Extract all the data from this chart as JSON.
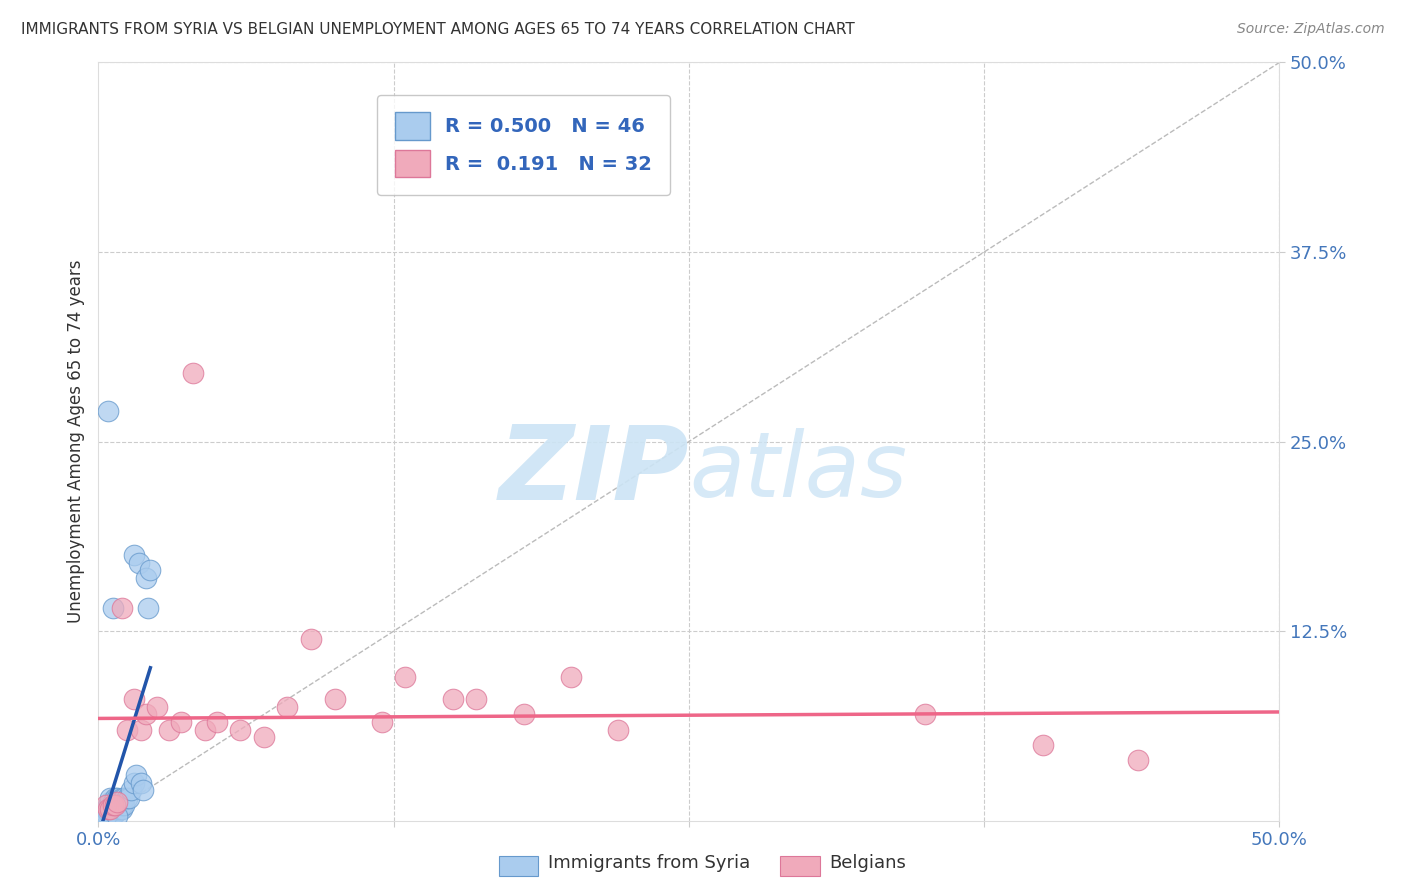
{
  "title": "IMMIGRANTS FROM SYRIA VS BELGIAN UNEMPLOYMENT AMONG AGES 65 TO 74 YEARS CORRELATION CHART",
  "source": "Source: ZipAtlas.com",
  "ylabel": "Unemployment Among Ages 65 to 74 years",
  "legend_label1": "Immigrants from Syria",
  "legend_label2": "Belgians",
  "R1": 0.5,
  "N1": 46,
  "R2": 0.191,
  "N2": 32,
  "xlim": [
    0.0,
    0.5
  ],
  "ylim": [
    0.0,
    0.5
  ],
  "xticks": [
    0.0,
    0.125,
    0.25,
    0.375,
    0.5
  ],
  "yticks": [
    0.125,
    0.25,
    0.375,
    0.5
  ],
  "color_blue": "#aaccee",
  "color_pink": "#f0aabb",
  "color_blue_edge": "#6699cc",
  "color_pink_edge": "#dd7799",
  "color_blue_line": "#2255aa",
  "color_pink_line": "#ee6688",
  "watermark_color": "#cce4f5",
  "blue_dots_x": [
    0.002,
    0.003,
    0.003,
    0.004,
    0.004,
    0.004,
    0.005,
    0.005,
    0.005,
    0.005,
    0.005,
    0.005,
    0.006,
    0.006,
    0.006,
    0.006,
    0.007,
    0.007,
    0.007,
    0.007,
    0.008,
    0.008,
    0.008,
    0.009,
    0.009,
    0.01,
    0.01,
    0.01,
    0.011,
    0.011,
    0.012,
    0.013,
    0.014,
    0.015,
    0.015,
    0.016,
    0.017,
    0.018,
    0.019,
    0.02,
    0.021,
    0.022,
    0.004,
    0.006,
    0.003,
    0.008
  ],
  "blue_dots_y": [
    0.005,
    0.005,
    0.008,
    0.006,
    0.008,
    0.01,
    0.005,
    0.007,
    0.008,
    0.01,
    0.012,
    0.015,
    0.005,
    0.008,
    0.01,
    0.012,
    0.005,
    0.008,
    0.01,
    0.015,
    0.008,
    0.01,
    0.015,
    0.008,
    0.012,
    0.008,
    0.01,
    0.015,
    0.01,
    0.015,
    0.015,
    0.015,
    0.02,
    0.025,
    0.175,
    0.03,
    0.17,
    0.025,
    0.02,
    0.16,
    0.14,
    0.165,
    0.27,
    0.14,
    0.003,
    0.003
  ],
  "pink_dots_x": [
    0.003,
    0.004,
    0.005,
    0.006,
    0.007,
    0.008,
    0.01,
    0.012,
    0.015,
    0.018,
    0.02,
    0.025,
    0.03,
    0.035,
    0.04,
    0.045,
    0.05,
    0.06,
    0.07,
    0.08,
    0.09,
    0.1,
    0.12,
    0.13,
    0.15,
    0.16,
    0.18,
    0.2,
    0.22,
    0.35,
    0.4,
    0.44
  ],
  "pink_dots_y": [
    0.01,
    0.008,
    0.008,
    0.01,
    0.01,
    0.012,
    0.14,
    0.06,
    0.08,
    0.06,
    0.07,
    0.075,
    0.06,
    0.065,
    0.295,
    0.06,
    0.065,
    0.06,
    0.055,
    0.075,
    0.12,
    0.08,
    0.065,
    0.095,
    0.08,
    0.08,
    0.07,
    0.095,
    0.06,
    0.07,
    0.05,
    0.04
  ]
}
